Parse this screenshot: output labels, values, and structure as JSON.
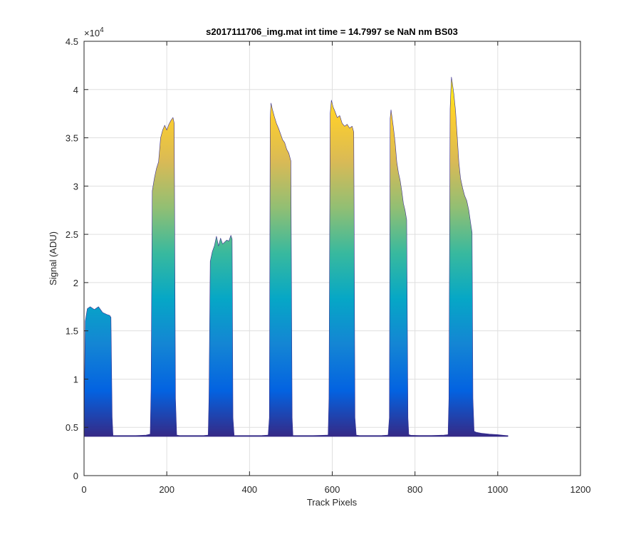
{
  "chart_data": {
    "type": "area",
    "title": "s2017111706_img.mat int time = 14.7997 se  NaN nm BS03",
    "xlabel": "Track Pixels",
    "ylabel": "Signal (ADU)",
    "xlim": [
      0,
      1200
    ],
    "ylim": [
      0,
      45000
    ],
    "x_ticks": [
      0,
      200,
      400,
      600,
      800,
      1000,
      1200
    ],
    "x_tick_labels": [
      "0",
      "200",
      "400",
      "600",
      "800",
      "1000",
      "1200"
    ],
    "y_ticks": [
      0,
      5000,
      10000,
      15000,
      20000,
      25000,
      30000,
      35000,
      40000,
      45000
    ],
    "y_tick_labels": [
      "0",
      "0.5",
      "1",
      "1.5",
      "2",
      "2.5",
      "3",
      "3.5",
      "4",
      "4.5"
    ],
    "y_exponent_label": "×10",
    "y_exponent_power": "4",
    "grid": true,
    "colormap": [
      "#352a87",
      "#0363e1",
      "#1485d4",
      "#06a7c6",
      "#38b99e",
      "#92bf73",
      "#d9ba56",
      "#fcce2e",
      "#f9fb0e"
    ],
    "baseline": 4100,
    "series": [
      {
        "x": [
          0,
          3,
          8,
          15,
          25,
          35,
          45,
          55,
          62,
          65,
          68,
          70,
          75,
          90,
          110,
          130,
          150,
          160
        ],
        "y": [
          4100,
          16000,
          17300,
          17500,
          17200,
          17500,
          16900,
          16700,
          16600,
          16400,
          6000,
          4150,
          4100,
          4100,
          4120,
          4150,
          4200,
          4300
        ]
      },
      {
        "x": [
          160,
          162,
          165,
          170,
          175,
          180,
          185,
          190,
          195,
          200,
          205,
          210,
          215,
          218,
          221,
          224,
          230,
          250,
          270,
          290,
          300
        ],
        "y": [
          4300,
          9000,
          29500,
          30800,
          31800,
          32500,
          35000,
          35800,
          36300,
          35800,
          36400,
          36800,
          37100,
          36500,
          8000,
          4200,
          4150,
          4100,
          4100,
          4150,
          4200
        ]
      },
      {
        "x": [
          300,
          302,
          305,
          310,
          315,
          320,
          325,
          330,
          335,
          340,
          345,
          350,
          355,
          358,
          360,
          363,
          370,
          390,
          410,
          430,
          445
        ],
        "y": [
          4200,
          8000,
          22200,
          23200,
          23800,
          24800,
          23800,
          24600,
          24000,
          24200,
          24400,
          24300,
          24900,
          24500,
          6000,
          4150,
          4100,
          4100,
          4120,
          4150,
          4200
        ]
      },
      {
        "x": [
          445,
          448,
          450,
          452,
          455,
          460,
          465,
          470,
          475,
          480,
          485,
          490,
          495,
          500,
          503,
          505,
          510,
          530,
          560,
          590
        ],
        "y": [
          4200,
          6000,
          37000,
          38600,
          38000,
          37200,
          36500,
          36000,
          35400,
          34800,
          34500,
          33800,
          33400,
          32600,
          6000,
          4150,
          4100,
          4120,
          4150,
          4200
        ]
      },
      {
        "x": [
          590,
          592,
          595,
          598,
          602,
          606,
          612,
          618,
          624,
          630,
          636,
          642,
          648,
          652,
          655,
          658,
          665,
          690,
          720,
          735
        ],
        "y": [
          4200,
          8000,
          37500,
          38900,
          38200,
          37800,
          37100,
          37300,
          36500,
          36200,
          36400,
          36000,
          36200,
          35600,
          6000,
          4200,
          4150,
          4120,
          4150,
          4200
        ]
      },
      {
        "x": [
          735,
          738,
          740,
          742,
          745,
          748,
          752,
          756,
          760,
          764,
          768,
          772,
          776,
          780,
          783,
          785,
          790,
          810,
          840,
          870,
          880
        ],
        "y": [
          4200,
          6000,
          37000,
          37900,
          37000,
          36000,
          34500,
          32500,
          31400,
          30600,
          29500,
          28200,
          27500,
          26500,
          6000,
          4250,
          4180,
          4150,
          4150,
          4200,
          4250
        ]
      },
      {
        "x": [
          880,
          882,
          885,
          888,
          890,
          894,
          898,
          902,
          906,
          910,
          915,
          920,
          925,
          930,
          935,
          938,
          940,
          943,
          948,
          960,
          980,
          1000,
          1020,
          1025
        ],
        "y": [
          4250,
          8000,
          38000,
          41300,
          40800,
          39500,
          37800,
          35200,
          32500,
          30800,
          29800,
          29000,
          28500,
          27500,
          26000,
          25200,
          8000,
          4600,
          4500,
          4400,
          4300,
          4250,
          4150,
          4100
        ]
      }
    ]
  }
}
